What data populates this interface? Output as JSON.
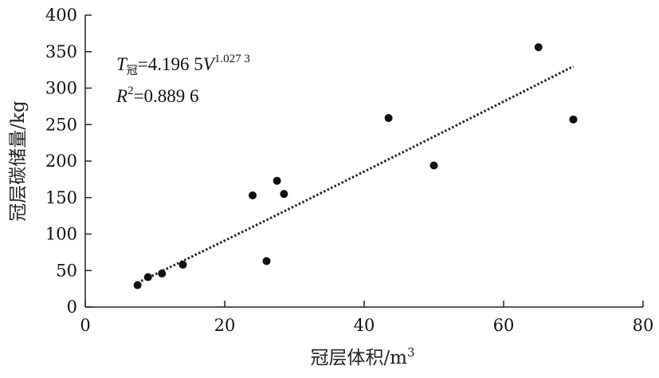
{
  "chart_data": {
    "type": "scatter",
    "xlabel": "冠层体积/m",
    "xlabel_sup": "3",
    "ylabel": "冠层碳储量/kg",
    "xlim": [
      0,
      80
    ],
    "ylim": [
      0,
      400
    ],
    "xticks": [
      0,
      20,
      40,
      60,
      80
    ],
    "yticks": [
      0,
      50,
      100,
      150,
      200,
      250,
      300,
      350,
      400
    ],
    "grid": false,
    "legend": "none",
    "points": [
      {
        "x": 7.5,
        "y": 30
      },
      {
        "x": 9.0,
        "y": 41
      },
      {
        "x": 11.0,
        "y": 46
      },
      {
        "x": 14.0,
        "y": 58
      },
      {
        "x": 24.0,
        "y": 153
      },
      {
        "x": 26.0,
        "y": 63
      },
      {
        "x": 27.5,
        "y": 173
      },
      {
        "x": 28.5,
        "y": 155
      },
      {
        "x": 43.5,
        "y": 259
      },
      {
        "x": 50.0,
        "y": 194
      },
      {
        "x": 65.0,
        "y": 356
      },
      {
        "x": 70.0,
        "y": 257
      }
    ],
    "trendline": {
      "model": "power",
      "a": 4.1965,
      "b": 1.0273,
      "x_range": [
        7.5,
        70
      ],
      "style": "dotted"
    },
    "annotation": {
      "line1": {
        "symbol": "T",
        "subscript": "冠",
        "text": "=4.196 5",
        "var": "V",
        "superscript": "1.027 3"
      },
      "line2": {
        "symbol": "R",
        "superscript": "2",
        "text": "=0.889 6"
      }
    },
    "colors": {
      "points": "#111111",
      "axis": "#222222",
      "trend": "#222222"
    }
  }
}
